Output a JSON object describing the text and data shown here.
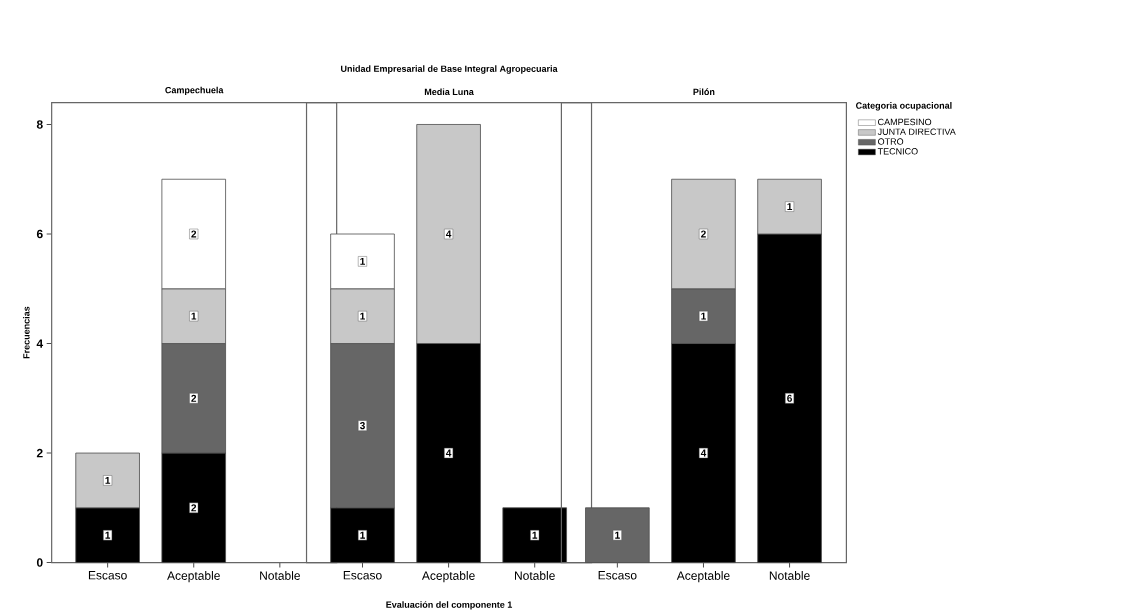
{
  "chart_data": [
    {
      "type": "bar",
      "stacked": true,
      "title": "Campechuela",
      "ylabel": "Frecuencias",
      "categories": [
        "Escaso",
        "Aceptable",
        "Notable"
      ],
      "ylim": [
        0,
        8.4
      ],
      "yticks": [
        0,
        2,
        4,
        6,
        8
      ],
      "data_labels": true,
      "series": [
        {
          "color": "#000000",
          "values": [
            1,
            2,
            null
          ]
        },
        {
          "color": "#666666",
          "values": [
            null,
            2,
            null
          ]
        },
        {
          "color": "#c8c8c8",
          "values": [
            1,
            1,
            null
          ]
        },
        {
          "color": "#ffffff",
          "values": [
            null,
            2,
            null
          ]
        }
      ]
    },
    {
      "type": "bar",
      "stacked": true,
      "title": "Media Luna",
      "xlabel": "Evaluación del componente 1",
      "annotations": [
        "Unidad Empresarial de Base Integral Agropecuaria"
      ],
      "categories": [
        "Escaso",
        "Aceptable",
        "Notable"
      ],
      "ylim": [
        0,
        8.4
      ],
      "yticks": [
        0,
        2,
        4,
        6,
        8
      ],
      "tick_labels": "x",
      "data_labels": true,
      "series": [
        {
          "color": "#000000",
          "values": [
            1,
            4,
            1
          ]
        },
        {
          "color": "#666666",
          "values": [
            3,
            null,
            null
          ]
        },
        {
          "color": "#c8c8c8",
          "values": [
            1,
            4,
            null
          ]
        },
        {
          "color": "#ffffff",
          "values": [
            1,
            null,
            null
          ]
        }
      ]
    },
    {
      "type": "bar",
      "stacked": true,
      "title": "Pilón",
      "legend": "right",
      "legend_title": "Categoria ocupacional",
      "categories": [
        "Escaso",
        "Aceptable",
        "Notable"
      ],
      "ylim": [
        0,
        8.4
      ],
      "yticks": [
        0,
        2,
        4,
        6,
        8
      ],
      "tick_labels": "x",
      "data_labels": true,
      "series": [
        {
          "name": "TECNICO",
          "color": "#000000",
          "values": [
            null,
            4,
            6
          ]
        },
        {
          "name": "OTRO",
          "color": "#666666",
          "values": [
            1,
            1,
            null
          ]
        },
        {
          "name": "JUNTA DIRECTIVA",
          "color": "#c8c8c8",
          "values": [
            null,
            2,
            1
          ]
        },
        {
          "name": "CAMPESINO",
          "color": "#ffffff",
          "values": [
            null,
            null,
            null
          ]
        }
      ]
    }
  ]
}
